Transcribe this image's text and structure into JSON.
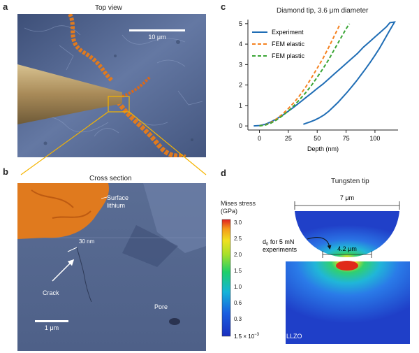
{
  "panels": {
    "a": {
      "letter": "a",
      "title": "Top view",
      "scale_bar": "10 μm"
    },
    "b": {
      "letter": "b",
      "title": "Cross section",
      "label_surface": "Surface\nlithium",
      "label_width": "30 nm",
      "label_crack": "Crack",
      "label_pore": "Pore",
      "scale_bar": "1 μm"
    },
    "c": {
      "letter": "c",
      "title": "Diamond tip, 3.6 μm diameter"
    },
    "d": {
      "letter": "d",
      "title": "Tungsten tip",
      "width": "7 μm",
      "contact": "4.2 μm",
      "d0_main": "d",
      "d0_sub": "0",
      "d0_rest": " for 5 mN",
      "d0_line2": "experiments",
      "material": "LLZO",
      "cbar_title1": "Mises stress",
      "cbar_title2": "(GPa)",
      "cbar_ticks": [
        "3.0",
        "2.5",
        "2.0",
        "1.5",
        "1.0",
        "0.6",
        "0.3"
      ],
      "cbar_min_main": "1.5 × 10",
      "cbar_min_exp": "−3"
    }
  },
  "colors": {
    "sem_blue": "#5b6f9a",
    "lithium_orange": "#e07a1e",
    "tip_gold": "#b89a66",
    "experiment": "#1f6db5",
    "fem_elastic": "#f58220",
    "fem_plastic": "#3aa535"
  },
  "chart_data": {
    "type": "line",
    "title": "Diamond tip, 3.6 μm diameter",
    "xlabel": "Depth (nm)",
    "ylabel": "",
    "xlim": [
      -10,
      120
    ],
    "ylim": [
      -0.2,
      5.2
    ],
    "xticks": [
      0,
      25,
      50,
      75,
      100
    ],
    "yticks": [
      0,
      1,
      2,
      3,
      4,
      5
    ],
    "legend_position": "top-left",
    "series": [
      {
        "name": "Experiment",
        "style": "solid",
        "color": "#1f6db5",
        "x": [
          -5,
          0,
          5,
          10,
          15,
          20,
          25,
          30,
          35,
          40,
          45,
          50,
          55,
          60,
          65,
          70,
          75,
          80,
          85,
          90,
          95,
          100,
          105,
          110,
          113,
          117,
          117,
          112,
          108,
          104,
          100,
          96,
          92,
          88,
          84,
          80,
          76,
          72,
          68,
          64,
          60,
          56,
          52,
          48,
          44,
          40,
          38
        ],
        "y": [
          0,
          0.02,
          0.08,
          0.2,
          0.35,
          0.52,
          0.72,
          0.93,
          1.15,
          1.38,
          1.6,
          1.83,
          2.05,
          2.3,
          2.55,
          2.8,
          3.05,
          3.3,
          3.55,
          3.85,
          4.1,
          4.35,
          4.6,
          4.85,
          5.05,
          5.08,
          5.08,
          4.6,
          4.2,
          3.8,
          3.45,
          3.12,
          2.8,
          2.5,
          2.2,
          1.92,
          1.65,
          1.4,
          1.15,
          0.93,
          0.72,
          0.54,
          0.4,
          0.29,
          0.2,
          0.12,
          0.08
        ]
      },
      {
        "name": "FEM elastic",
        "style": "dashed",
        "color": "#f58220",
        "x": [
          0,
          5,
          10,
          15,
          20,
          25,
          30,
          35,
          40,
          45,
          50,
          55,
          60,
          65,
          70
        ],
        "y": [
          0,
          0.05,
          0.17,
          0.35,
          0.58,
          0.85,
          1.15,
          1.5,
          1.9,
          2.35,
          2.82,
          3.3,
          3.85,
          4.42,
          5.0
        ]
      },
      {
        "name": "FEM plastic",
        "style": "dashed",
        "color": "#3aa535",
        "x": [
          0,
          5,
          10,
          15,
          20,
          25,
          30,
          35,
          40,
          45,
          50,
          55,
          60,
          65,
          70,
          75,
          78
        ],
        "y": [
          0,
          0.04,
          0.14,
          0.3,
          0.5,
          0.73,
          1.0,
          1.3,
          1.62,
          1.98,
          2.38,
          2.8,
          3.25,
          3.75,
          4.25,
          4.75,
          5.0
        ]
      }
    ]
  }
}
